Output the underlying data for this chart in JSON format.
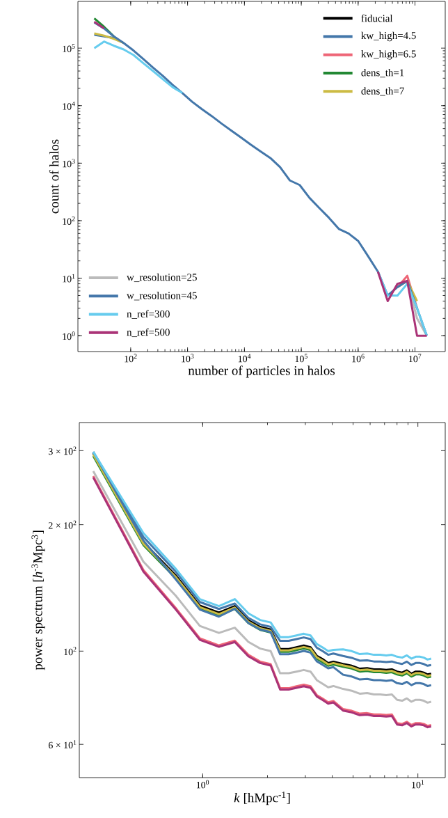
{
  "chart_data": [
    {
      "type": "line",
      "xlabel": "number of particles in halos",
      "ylabel": "count of halos",
      "log": "xy",
      "legend": [
        "top right",
        "bottom left"
      ],
      "xlim": [
        11.8,
        34000000
      ],
      "ylim": [
        0.53,
        650000
      ],
      "xticks": [
        {
          "value": 100,
          "label": "10$^{2}$"
        },
        {
          "value": 1000,
          "label": "10$^{3}$"
        },
        {
          "value": 10000,
          "label": "10$^{4}$"
        },
        {
          "value": 100000,
          "label": "10$^{5}$"
        },
        {
          "value": 1000000,
          "label": "10$^{6}$"
        },
        {
          "value": 10000000,
          "label": "10$^{7}$"
        }
      ],
      "yticks": [
        {
          "value": 1,
          "label": "10$^{0}$"
        },
        {
          "value": 10,
          "label": "10$^{1}$"
        },
        {
          "value": 100,
          "label": "10$^{2}$"
        },
        {
          "value": 1000,
          "label": "10$^{3}$"
        },
        {
          "value": 10000,
          "label": "10$^{4}$"
        },
        {
          "value": 100000,
          "label": "10$^{5}$"
        }
      ],
      "x": [
        22.9,
        34,
        50.6,
        75.2,
        112,
        166,
        247,
        366,
        545,
        809,
        1202,
        1786,
        2655,
        3945,
        5861,
        8710,
        12940,
        19230,
        28580,
        42460,
        63100,
        93760,
        139300,
        207000,
        307600,
        457100,
        679200,
        1009000,
        1500000,
        2228000,
        3311000,
        4920000,
        7311000,
        10860000,
        16140000
      ],
      "series": [
        {
          "name": "fiducial",
          "color": "#000000",
          "values": [
            null,
            null,
            null,
            null,
            null,
            null,
            null,
            null,
            null,
            null,
            null,
            null,
            null,
            null,
            null,
            null,
            null,
            null,
            null,
            null,
            null,
            null,
            null,
            null,
            null,
            null,
            null,
            null,
            null,
            null,
            null,
            null,
            null,
            null,
            null
          ]
        },
        {
          "name": "kw_high=4.5",
          "color": "#4477aa",
          "values": [
            170000,
            160000,
            150000,
            123000,
            null,
            null,
            null,
            null,
            null,
            null,
            null,
            null,
            null,
            null,
            null,
            null,
            null,
            null,
            null,
            null,
            null,
            null,
            null,
            null,
            null,
            null,
            null,
            null,
            null,
            null,
            null,
            null,
            null,
            null,
            null
          ]
        },
        {
          "name": "kw_high=6.5",
          "color": "#ee6677",
          "values": [
            null,
            null,
            null,
            null,
            null,
            null,
            null,
            null,
            null,
            null,
            null,
            null,
            null,
            null,
            null,
            null,
            null,
            null,
            null,
            null,
            null,
            null,
            null,
            null,
            null,
            null,
            null,
            null,
            null,
            null,
            null,
            7,
            11,
            3,
            null
          ]
        },
        {
          "name": "dens_th=1",
          "color": "#228833",
          "values": [
            330000,
            235000,
            160000,
            null,
            null,
            null,
            null,
            null,
            null,
            null,
            null,
            null,
            null,
            null,
            null,
            null,
            null,
            null,
            null,
            null,
            null,
            null,
            null,
            null,
            null,
            null,
            null,
            null,
            null,
            null,
            null,
            null,
            null,
            null,
            null
          ]
        },
        {
          "name": "dens_th=7",
          "color": "#ccbb44",
          "values": [
            180000,
            165000,
            145000,
            123000,
            null,
            null,
            null,
            null,
            null,
            null,
            null,
            null,
            null,
            null,
            null,
            null,
            null,
            null,
            null,
            null,
            null,
            null,
            null,
            null,
            null,
            null,
            null,
            null,
            null,
            null,
            null,
            7,
            9,
            4,
            null
          ]
        },
        {
          "name": "w_resolution=25",
          "color": "#bbbbbb",
          "values": [
            null,
            null,
            null,
            null,
            null,
            null,
            null,
            null,
            null,
            null,
            null,
            null,
            null,
            null,
            null,
            null,
            null,
            null,
            null,
            null,
            null,
            null,
            null,
            null,
            null,
            null,
            null,
            null,
            null,
            null,
            null,
            null,
            9,
            2,
            1
          ]
        },
        {
          "name": "w_resolution=45",
          "color": "#4477aa",
          "values": [
            280000,
            220000,
            160000,
            123000,
            91000,
            65000,
            46000,
            33000,
            23000,
            16600,
            11700,
            8700,
            6600,
            4900,
            3700,
            2800,
            2100,
            1600,
            1230,
            850,
            500,
            417,
            250,
            166,
            112,
            72,
            60,
            44,
            24,
            13,
            5,
            7,
            9,
            3,
            1
          ]
        },
        {
          "name": "n_ref=300",
          "color": "#66ccee",
          "values": [
            100000,
            130000,
            110000,
            95000,
            76000,
            55000,
            40000,
            29000,
            21000,
            16600,
            null,
            null,
            null,
            null,
            null,
            null,
            null,
            null,
            null,
            null,
            null,
            null,
            null,
            null,
            null,
            null,
            null,
            null,
            null,
            13,
            5,
            5,
            8,
            3,
            1
          ]
        },
        {
          "name": "n_ref=500",
          "color": "#aa3377",
          "values": [
            288000,
            220000,
            null,
            null,
            null,
            null,
            null,
            null,
            null,
            null,
            null,
            null,
            null,
            null,
            null,
            null,
            null,
            null,
            null,
            null,
            null,
            null,
            null,
            null,
            null,
            null,
            null,
            null,
            null,
            13,
            4,
            8,
            9,
            1,
            1
          ]
        }
      ]
    },
    {
      "type": "line",
      "xlabel": "*k* [hMpc$^{-1}$]",
      "ylabel": "power spectrum [*h*$^{-3}$Mpc$^{3}$]",
      "log": "xy",
      "xlim": [
        0.267,
        13.4
      ],
      "ylim": [
        50,
        350
      ],
      "xticks": [
        {
          "value": 1,
          "label": "10$^{0}$"
        },
        {
          "value": 10,
          "label": "10$^{1}$"
        }
      ],
      "yticks": [
        {
          "value": 60,
          "label": "6 × 10$^{1}$"
        },
        {
          "value": 100,
          "label": "10$^{2}$"
        },
        {
          "value": 200,
          "label": "2 × 10$^{2}$"
        },
        {
          "value": 300,
          "label": "3 × 10$^{2}$"
        }
      ],
      "x": [
        0.31,
        0.53,
        0.75,
        0.97,
        1.19,
        1.41,
        1.63,
        1.85,
        2.07,
        2.29,
        2.51,
        2.73,
        2.95,
        3.17,
        3.39,
        3.61,
        3.83,
        4.05,
        4.49,
        4.93,
        5.37,
        5.81,
        6.25,
        6.69,
        7.13,
        7.57,
        8.01,
        8.45,
        8.89,
        9.33,
        9.77,
        10.21,
        10.65,
        11.09,
        11.53
      ],
      "series": [
        {
          "color": "#000000",
          "values": [
            296.2,
            181.7,
            151.4,
            128.3,
            123.5,
            128,
            118.4,
            114.2,
            112.6,
            101.2,
            101.2,
            102.2,
            103.1,
            102.2,
            97.5,
            95.7,
            93.7,
            94.4,
            93.2,
            92.3,
            90.8,
            91.1,
            90.5,
            90.5,
            90.2,
            90.5,
            89.4,
            88.9,
            90,
            88.4,
            89.4,
            89.4,
            88.9,
            88,
            88.4
          ]
        },
        {
          "color": "#4477aa",
          "values": [
            298,
            187,
            154.5,
            130.9,
            126,
            129.8,
            120,
            115.8,
            114.2,
            105.8,
            105.8,
            106.8,
            107.8,
            106.8,
            101.9,
            100,
            98,
            98.7,
            97.4,
            96.4,
            94.9,
            95.1,
            94.5,
            94.5,
            94.2,
            94.5,
            93.7,
            93.2,
            94.4,
            92.7,
            93.7,
            93.7,
            93.2,
            92.3,
            92.7
          ]
        },
        {
          "color": "#ee6677",
          "values": [
            261,
            156,
            126.6,
            107.3,
            103.2,
            105.9,
            98,
            94.4,
            93.1,
            81.6,
            81.6,
            82.5,
            83.2,
            82.5,
            78.6,
            77.1,
            75.6,
            76.1,
            72.8,
            72.1,
            71,
            71.2,
            70.7,
            70.7,
            70.5,
            70.7,
            67.4,
            67.1,
            67.9,
            66.7,
            67.4,
            67.4,
            67.1,
            66.4,
            66.7
          ]
        },
        {
          "color": "#228833",
          "values": [
            291.4,
            178.9,
            149,
            126.3,
            121.5,
            126,
            116.6,
            112.4,
            110.8,
            99.6,
            99.6,
            100.6,
            101.5,
            100.6,
            95.9,
            94.1,
            92.3,
            92.9,
            91.8,
            90.9,
            89.4,
            89.7,
            89.1,
            89.1,
            88.8,
            89.1,
            88,
            87.5,
            88.6,
            87,
            88,
            88,
            87.5,
            86.6,
            87
          ]
        },
        {
          "color": "#ccbb44",
          "values": [
            293.8,
            180.3,
            150.2,
            127.3,
            122.5,
            127,
            117.5,
            113.3,
            111.7,
            100.4,
            100.4,
            101.4,
            102.3,
            101.4,
            96.7,
            94.9,
            93,
            93.7,
            92.5,
            91.6,
            90.1,
            90.4,
            89.8,
            89.8,
            89.5,
            89.8,
            88.7,
            88.2,
            89.3,
            87.7,
            88.7,
            88.7,
            88.2,
            87.3,
            87.7
          ]
        },
        {
          "color": "#bbbbbb",
          "values": [
            268.2,
            163.3,
            135.5,
            114.8,
            110.5,
            113.7,
            105.2,
            101.4,
            100,
            88.6,
            88.6,
            89.4,
            90.2,
            89.4,
            85.3,
            83.6,
            82,
            82.6,
            81.3,
            80.5,
            79.2,
            79.5,
            78.9,
            78.9,
            78.6,
            78.9,
            76.6,
            76.2,
            77.2,
            75.8,
            76.6,
            76.6,
            76.2,
            75.4,
            75.8
          ]
        },
        {
          "color": "#4477aa",
          "values": [
            298,
            183.4,
            148.2,
            125.6,
            120.8,
            126.2,
            116.7,
            112.6,
            111,
            98.3,
            98.3,
            99.2,
            100.1,
            99.2,
            94.6,
            92.8,
            91,
            91.6,
            87.9,
            87,
            85.6,
            85.9,
            85.3,
            85.3,
            85,
            85.3,
            83.9,
            83.5,
            84.5,
            83,
            83.9,
            83.9,
            83.5,
            82.6,
            83
          ]
        },
        {
          "color": "#66ccee",
          "values": [
            298,
            191,
            157,
            133,
            128,
            133,
            123,
            118.6,
            117,
            108,
            108,
            109,
            110,
            109,
            104,
            102,
            100,
            100.7,
            101,
            100,
            98.4,
            98.7,
            98,
            98,
            97.7,
            98,
            97,
            96.5,
            97.7,
            96,
            97,
            97,
            96.5,
            95.5,
            96
          ]
        },
        {
          "color": "#aa3377",
          "values": [
            259,
            154.7,
            125.6,
            106.4,
            102.4,
            105.1,
            97.2,
            93.7,
            92.4,
            81,
            81,
            81.8,
            82.5,
            81.8,
            78,
            76.5,
            75,
            75.5,
            72.2,
            71.5,
            70.4,
            70.6,
            70.1,
            70.1,
            69.9,
            70.1,
            66.9,
            66.6,
            67.4,
            66.2,
            66.9,
            66.9,
            66.6,
            65.9,
            66.2
          ]
        }
      ]
    }
  ]
}
